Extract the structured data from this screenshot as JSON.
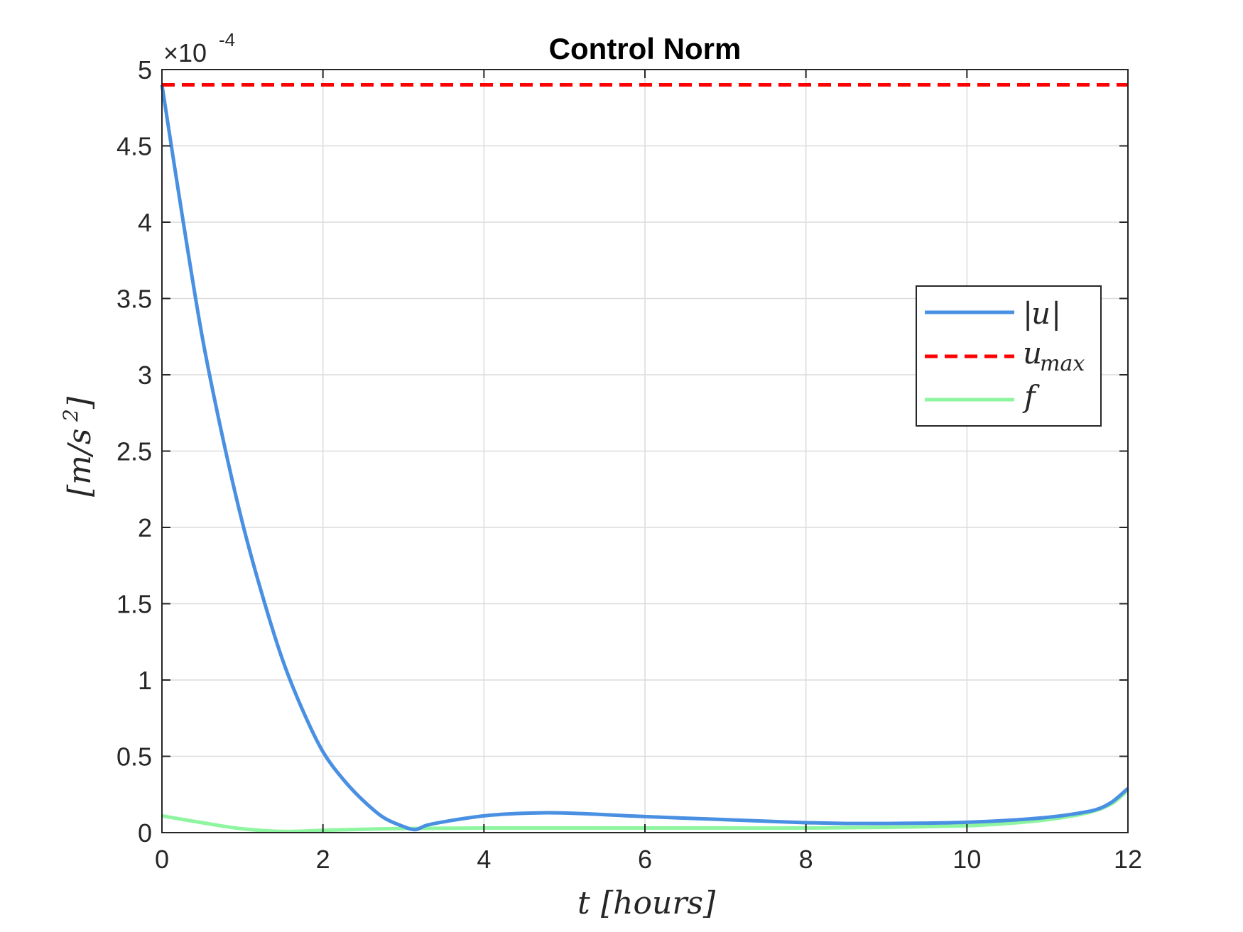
{
  "chart_data": {
    "type": "line",
    "title": "Control Norm",
    "xlabel": "t [hours]",
    "ylabel": "[m/s²]",
    "xlim": [
      0,
      12
    ],
    "ylim": [
      0,
      5
    ],
    "y_scale_note": {
      "base": "×10",
      "exponent": "-4"
    },
    "x_ticks": [
      "0",
      "2",
      "4",
      "6",
      "8",
      "10",
      "12"
    ],
    "y_ticks": [
      "0",
      "0.5",
      "1",
      "1.5",
      "2",
      "2.5",
      "3",
      "3.5",
      "4",
      "4.5",
      "5"
    ],
    "grid": true,
    "legend_position": "right",
    "series": [
      {
        "name": "|u|",
        "color": "#4a90e2",
        "style": "solid",
        "x": [
          0,
          0.25,
          0.5,
          0.75,
          1.0,
          1.25,
          1.5,
          1.75,
          2.0,
          2.25,
          2.5,
          2.75,
          3.0,
          3.15,
          3.3,
          3.6,
          4.0,
          4.4,
          4.8,
          5.2,
          5.6,
          6.0,
          6.5,
          7.0,
          7.5,
          8.0,
          8.5,
          9.0,
          9.5,
          10.0,
          10.5,
          11.0,
          11.3,
          11.6,
          11.8,
          12.0
        ],
        "y": [
          4.9,
          4.05,
          3.25,
          2.6,
          2.03,
          1.55,
          1.13,
          0.8,
          0.53,
          0.35,
          0.21,
          0.1,
          0.04,
          0.02,
          0.05,
          0.08,
          0.11,
          0.125,
          0.13,
          0.125,
          0.115,
          0.105,
          0.095,
          0.085,
          0.075,
          0.065,
          0.06,
          0.06,
          0.062,
          0.068,
          0.08,
          0.1,
          0.12,
          0.15,
          0.2,
          0.29
        ]
      },
      {
        "name": "u_max",
        "color": "#ff0000",
        "style": "dashed",
        "x": [
          0,
          12
        ],
        "y": [
          4.9,
          4.9
        ]
      },
      {
        "name": "f",
        "color": "#8ef5a0",
        "style": "solid",
        "x": [
          0,
          0.5,
          1.0,
          1.5,
          2.0,
          2.5,
          3.0,
          4.0,
          5.0,
          6.0,
          7.0,
          8.0,
          9.0,
          10.0,
          10.5,
          11.0,
          11.5,
          11.8,
          12.0
        ],
        "y": [
          0.11,
          0.065,
          0.025,
          0.008,
          0.015,
          0.022,
          0.027,
          0.03,
          0.03,
          0.03,
          0.03,
          0.03,
          0.035,
          0.045,
          0.06,
          0.085,
          0.13,
          0.19,
          0.28
        ]
      }
    ]
  },
  "legend": {
    "u_norm": {
      "open": "|",
      "var": "u",
      "close": "|"
    },
    "u_max": {
      "base": "u",
      "sub": "max"
    },
    "f": {
      "var": "f"
    }
  },
  "axis_labels": {
    "x": {
      "var": "t",
      "rest": "[hours]"
    },
    "y": {
      "open": "[m/s",
      "sup": "2",
      "close": "]"
    }
  }
}
